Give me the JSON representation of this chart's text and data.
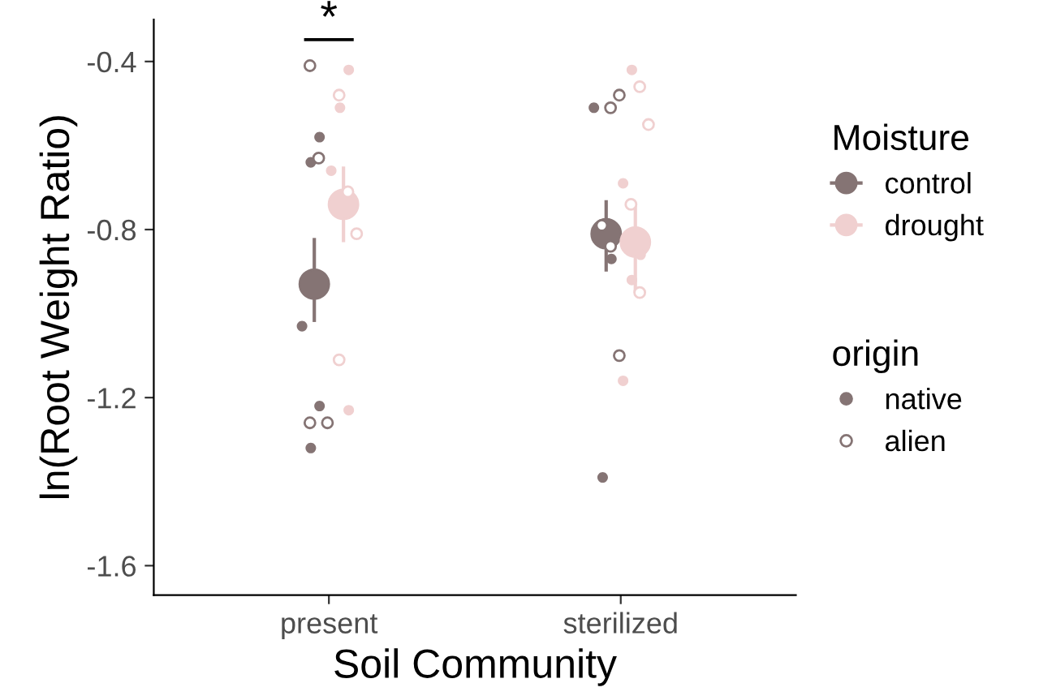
{
  "chart_data": {
    "type": "scatter",
    "xlabel": "Soil Community",
    "ylabel": "ln(Root Weight Ratio)",
    "categories": [
      "present",
      "sterilized"
    ],
    "ylim": [
      -1.67,
      -0.3
    ],
    "yticks": [
      -0.4,
      -0.8,
      -1.2,
      -1.6
    ],
    "grid": false,
    "legend": "right",
    "legend_title": [
      "Moisture",
      "origin"
    ],
    "annotations": [
      "*"
    ],
    "series": [
      {
        "name": "control",
        "color": "#857474",
        "marker": "circle",
        "x": [
          "present",
          "sterilized"
        ],
        "values": [
          -0.93,
          -0.81
        ],
        "errors": [
          [
            -1.02,
            -0.82
          ],
          [
            -0.9,
            -0.73
          ]
        ]
      },
      {
        "name": "drought",
        "color": "#f0d0d0",
        "marker": "circle",
        "x": [
          "present",
          "sterilized"
        ],
        "values": [
          -0.74,
          -0.83
        ],
        "errors": [
          [
            -0.83,
            -0.65
          ],
          [
            -0.95,
            -0.74
          ]
        ]
      },
      {
        "name": "native",
        "color": "#857474",
        "marker": "circle",
        "x": [
          "present",
          "present",
          "present",
          "present",
          "present",
          "sterilized",
          "sterilized",
          "sterilized"
        ],
        "values": [
          -0.58,
          -0.64,
          -1.03,
          -1.22,
          -1.32,
          -0.51,
          -0.87,
          -1.39
        ]
      },
      {
        "name": "alien",
        "color": "#857474",
        "marker": "circle-open",
        "x": [
          "present",
          "present",
          "present",
          "present",
          "sterilized",
          "sterilized",
          "sterilized",
          "sterilized",
          "sterilized"
        ],
        "values": [
          -0.41,
          -0.63,
          -1.26,
          -1.26,
          -0.51,
          -0.48,
          -0.79,
          -0.84,
          -1.1
        ]
      },
      {
        "color": "#f0d0d0",
        "marker": "circle",
        "x": [
          "present",
          "present",
          "present",
          "present",
          "sterilized",
          "sterilized",
          "sterilized",
          "sterilized",
          "sterilized"
        ],
        "values": [
          -0.42,
          -0.51,
          -0.66,
          -1.23,
          -0.42,
          -0.69,
          -0.86,
          -0.92,
          -1.16
        ]
      },
      {
        "color": "#f0d0d0",
        "marker": "circle-open",
        "x": [
          "present",
          "present",
          "present",
          "present",
          "sterilized",
          "sterilized",
          "sterilized",
          "sterilized"
        ],
        "values": [
          -0.48,
          -0.71,
          -0.81,
          -1.11,
          -0.46,
          -0.55,
          -0.74,
          -0.95
        ]
      }
    ]
  }
}
